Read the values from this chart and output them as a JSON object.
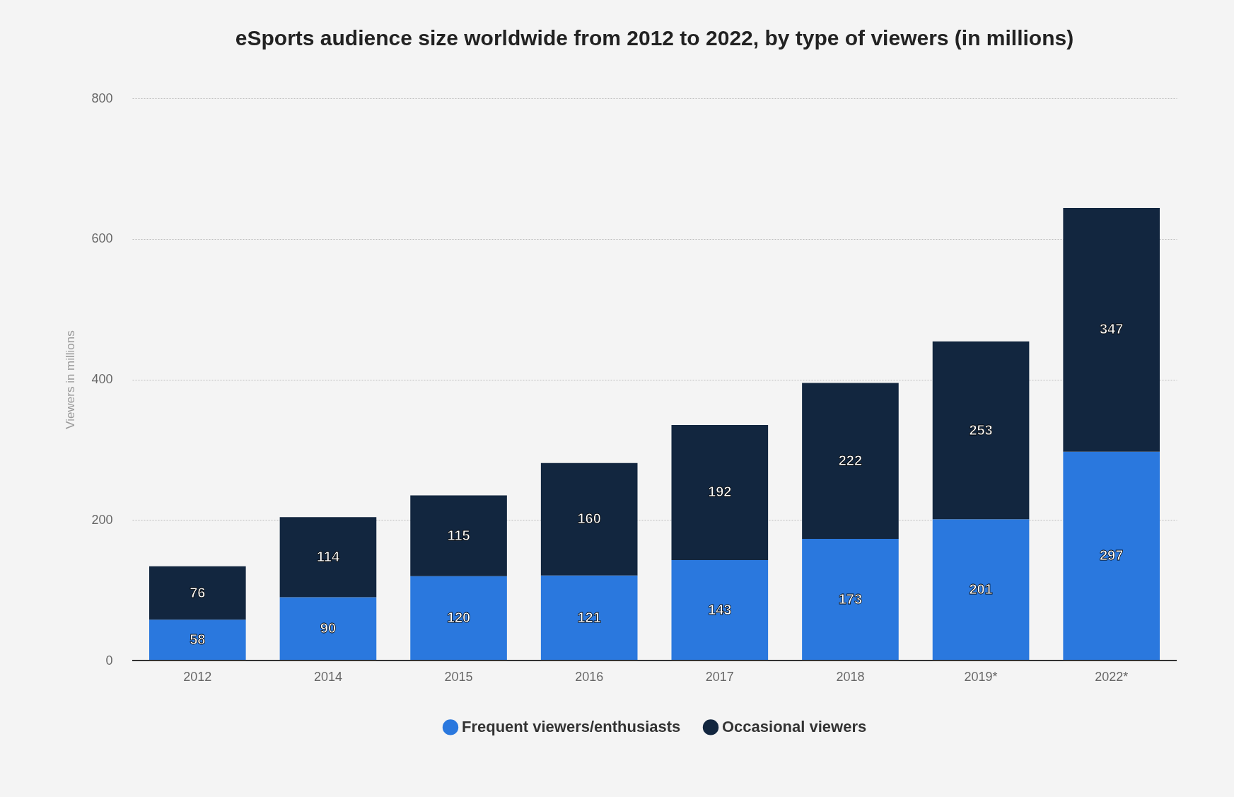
{
  "chart_data": {
    "type": "bar",
    "title": "eSports audience size worldwide from 2012 to 2022, by type of viewers (in millions)",
    "ylabel": "Viewers in millions",
    "categories": [
      "2012",
      "2014",
      "2015",
      "2016",
      "2017",
      "2018",
      "2019*",
      "2022*"
    ],
    "stacked": true,
    "data_labels": true,
    "legend": "bottom",
    "grid": "y",
    "ylim": [
      0,
      800
    ],
    "yticks": [
      0,
      200,
      400,
      600,
      800
    ],
    "series": [
      {
        "name": "Frequent viewers/enthusiasts",
        "color": "#2a78de",
        "values": [
          58,
          90,
          120,
          121,
          143,
          173,
          201,
          297
        ]
      },
      {
        "name": "Occasional viewers",
        "color": "#12263f",
        "values": [
          76,
          114,
          115,
          160,
          192,
          222,
          253,
          347
        ]
      }
    ]
  }
}
